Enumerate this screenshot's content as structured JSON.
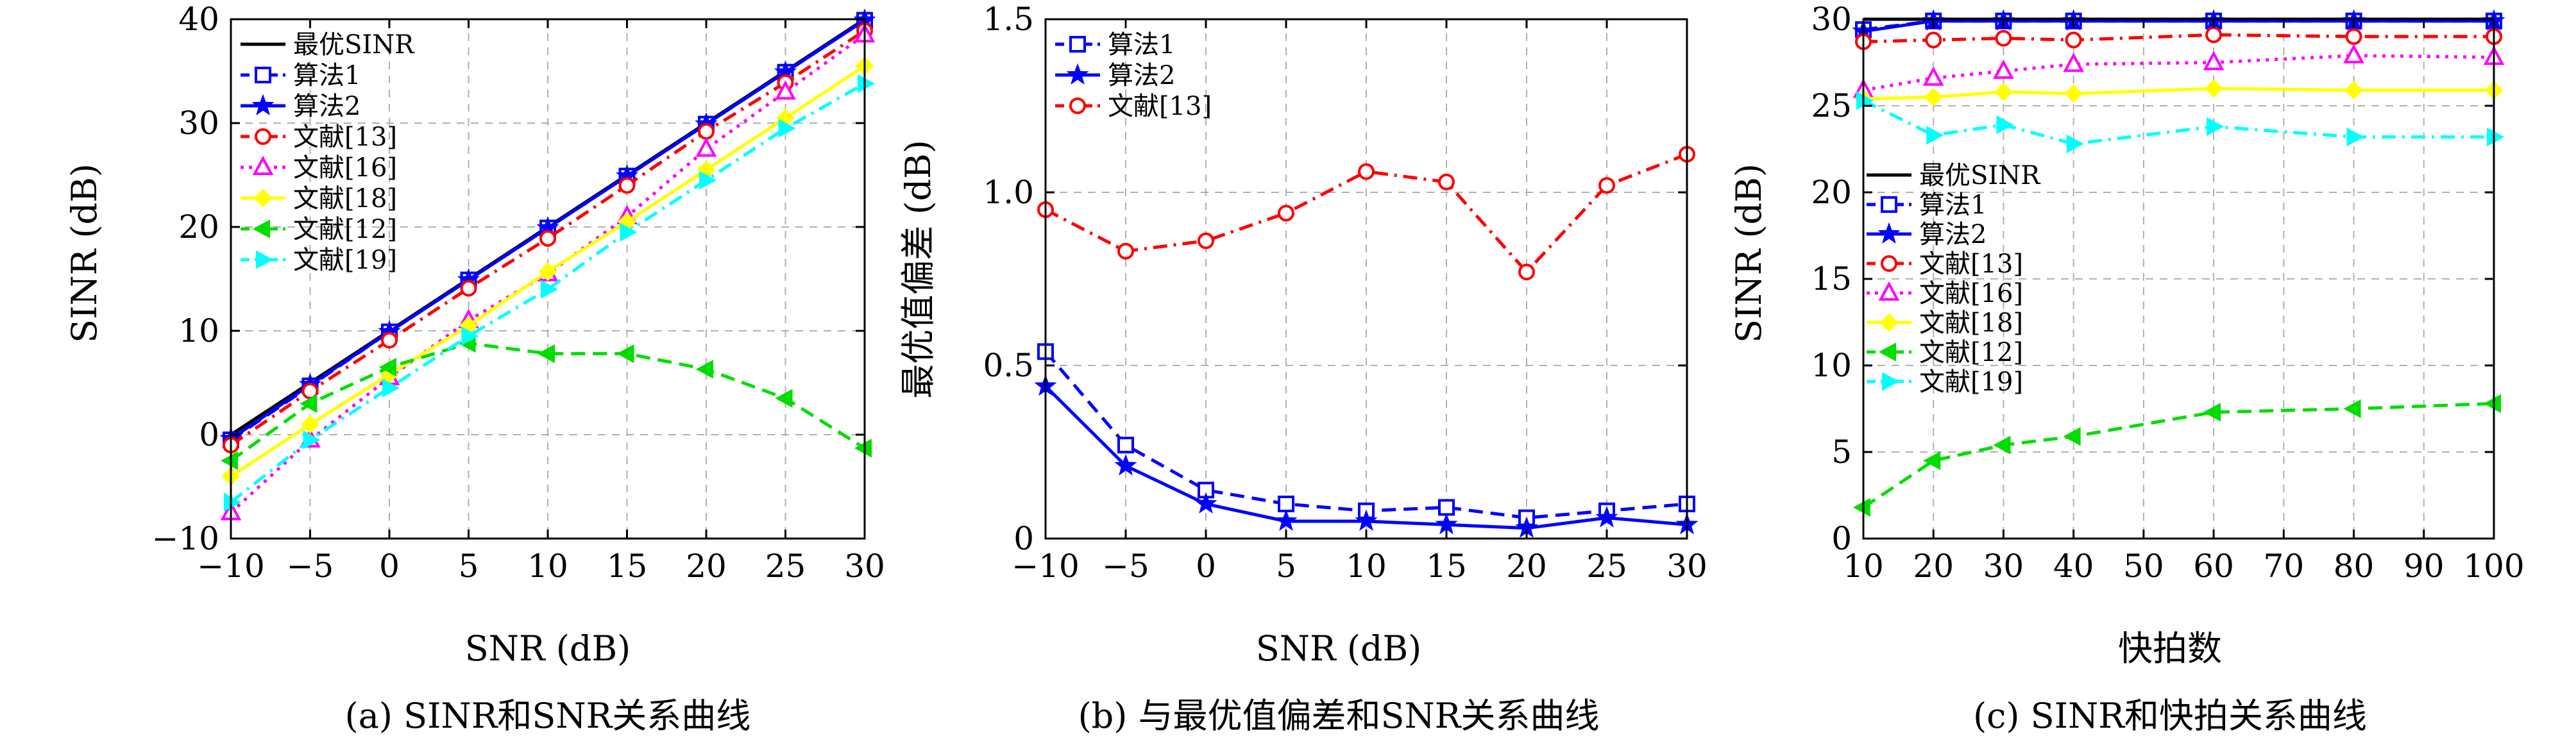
{
  "chart_data": [
    {
      "type": "line",
      "caption": "(a) SINR和SNR关系曲线",
      "xlabel": "SNR (dB)",
      "ylabel": "SINR (dB)",
      "xlim": [
        -10,
        30
      ],
      "ylim": [
        -10,
        40
      ],
      "xticks": [
        -10,
        -5,
        0,
        5,
        10,
        15,
        20,
        25,
        30
      ],
      "xtick_labels": [
        "−10",
        "−5",
        "0",
        "5",
        "10",
        "15",
        "20",
        "25",
        "30"
      ],
      "yticks": [
        -10,
        0,
        10,
        20,
        30,
        40
      ],
      "ytick_labels": [
        "−10",
        "0",
        "10",
        "20",
        "30",
        "40"
      ],
      "grid": true,
      "legend_position": "top-left",
      "x": [
        -10,
        -5,
        0,
        5,
        10,
        15,
        20,
        25,
        30
      ],
      "series": [
        {
          "name": "最优SINR",
          "color": "#000000",
          "dash": "solid",
          "marker": "none",
          "values": [
            0,
            5,
            10,
            15,
            20,
            25,
            30,
            35,
            40
          ]
        },
        {
          "name": "算法1",
          "color": "#0000ff",
          "dash": "dashed",
          "marker": "square",
          "values": [
            -0.5,
            4.7,
            9.9,
            14.9,
            19.9,
            24.9,
            29.9,
            34.9,
            39.9
          ]
        },
        {
          "name": "算法2",
          "color": "#0000ff",
          "dash": "solid",
          "marker": "star",
          "values": [
            -0.4,
            4.8,
            9.9,
            14.9,
            19.9,
            24.9,
            29.9,
            34.9,
            39.9
          ]
        },
        {
          "name": "文献[13]",
          "color": "#ff0000",
          "dash": "dashdot",
          "marker": "circle",
          "values": [
            -1.0,
            4.2,
            9.1,
            14.1,
            18.9,
            24.0,
            29.2,
            33.9,
            38.9
          ]
        },
        {
          "name": "文献[16]",
          "color": "#ff00ff",
          "dash": "dotted",
          "marker": "triangle",
          "values": [
            -7.5,
            -0.5,
            5.5,
            11.0,
            15.5,
            21.0,
            27.5,
            33.0,
            38.5
          ]
        },
        {
          "name": "文献[18]",
          "color": "#ffff00",
          "dash": "solid",
          "marker": "diamond",
          "values": [
            -4.0,
            1.0,
            5.8,
            10.5,
            15.7,
            20.5,
            25.5,
            30.5,
            35.5
          ]
        },
        {
          "name": "文献[12]",
          "color": "#00dd00",
          "dash": "dashed",
          "marker": "triangle-left",
          "values": [
            -2.5,
            3.0,
            6.5,
            8.8,
            7.8,
            7.8,
            6.3,
            3.5,
            -1.3
          ]
        },
        {
          "name": "文献[19]",
          "color": "#00ffff",
          "dash": "dashdot",
          "marker": "triangle-right",
          "values": [
            -6.5,
            -0.5,
            4.5,
            9.5,
            14.0,
            19.5,
            24.5,
            29.5,
            33.8
          ]
        }
      ]
    },
    {
      "type": "line",
      "caption": "(b) 与最优值偏差和SNR关系曲线",
      "xlabel": "SNR (dB)",
      "ylabel": "最优值偏差 (dB)",
      "xlim": [
        -10,
        30
      ],
      "ylim": [
        0,
        1.5
      ],
      "xticks": [
        -10,
        -5,
        0,
        5,
        10,
        15,
        20,
        25,
        30
      ],
      "xtick_labels": [
        "−10",
        "−5",
        "0",
        "5",
        "10",
        "15",
        "20",
        "25",
        "30"
      ],
      "yticks": [
        0,
        0.5,
        1.0,
        1.5
      ],
      "ytick_labels": [
        "0",
        "0.5",
        "1.0",
        "1.5"
      ],
      "grid": true,
      "legend_position": "top-left",
      "x": [
        -10,
        -5,
        0,
        5,
        10,
        15,
        20,
        25,
        30
      ],
      "series": [
        {
          "name": "算法1",
          "color": "#0000ff",
          "dash": "dashed",
          "marker": "square",
          "values": [
            0.54,
            0.27,
            0.14,
            0.1,
            0.08,
            0.09,
            0.06,
            0.08,
            0.1
          ]
        },
        {
          "name": "算法2",
          "color": "#0000ff",
          "dash": "solid",
          "marker": "star",
          "values": [
            0.44,
            0.21,
            0.1,
            0.05,
            0.05,
            0.04,
            0.03,
            0.06,
            0.04
          ]
        },
        {
          "name": "文献[13]",
          "color": "#ff0000",
          "dash": "dashdot",
          "marker": "circle",
          "values": [
            0.95,
            0.83,
            0.86,
            0.94,
            1.06,
            1.03,
            0.77,
            1.02,
            1.11
          ]
        }
      ]
    },
    {
      "type": "line",
      "caption": "(c) SINR和快拍关系曲线",
      "xlabel": "快拍数",
      "ylabel": "SINR (dB)",
      "xlim": [
        10,
        100
      ],
      "ylim": [
        0,
        30
      ],
      "xticks": [
        10,
        20,
        30,
        40,
        50,
        60,
        70,
        80,
        90,
        100
      ],
      "xtick_labels": [
        "10",
        "20",
        "30",
        "40",
        "50",
        "60",
        "70",
        "80",
        "90",
        "100"
      ],
      "yticks": [
        0,
        5,
        10,
        15,
        20,
        25,
        30
      ],
      "ytick_labels": [
        "0",
        "5",
        "10",
        "15",
        "20",
        "25",
        "30"
      ],
      "grid": true,
      "legend_position": "center-left",
      "x": [
        10,
        20,
        30,
        40,
        60,
        80,
        100
      ],
      "series": [
        {
          "name": "最优SINR",
          "color": "#000000",
          "dash": "solid",
          "marker": "none",
          "values": [
            30,
            30,
            30,
            30,
            30,
            30,
            30
          ]
        },
        {
          "name": "算法1",
          "color": "#0000ff",
          "dash": "dashed",
          "marker": "square",
          "values": [
            29.4,
            29.9,
            29.9,
            29.9,
            29.9,
            29.9,
            29.9
          ]
        },
        {
          "name": "算法2",
          "color": "#0000ff",
          "dash": "solid",
          "marker": "star",
          "values": [
            29.3,
            29.9,
            29.9,
            29.9,
            29.9,
            29.9,
            29.9
          ]
        },
        {
          "name": "文献[13]",
          "color": "#ff0000",
          "dash": "dashdot",
          "marker": "circle",
          "values": [
            28.7,
            28.8,
            28.9,
            28.8,
            29.1,
            29.0,
            29.0
          ]
        },
        {
          "name": "文献[16]",
          "color": "#ff00ff",
          "dash": "dotted",
          "marker": "triangle",
          "values": [
            25.9,
            26.6,
            27.0,
            27.4,
            27.5,
            27.9,
            27.8
          ]
        },
        {
          "name": "文献[18]",
          "color": "#ffff00",
          "dash": "solid",
          "marker": "diamond",
          "values": [
            25.4,
            25.5,
            25.8,
            25.7,
            26.0,
            25.9,
            25.9
          ]
        },
        {
          "name": "文献[12]",
          "color": "#00dd00",
          "dash": "dashed",
          "marker": "triangle-left",
          "values": [
            1.8,
            4.5,
            5.4,
            5.9,
            7.3,
            7.5,
            7.8
          ]
        },
        {
          "name": "文献[19]",
          "color": "#00ffff",
          "dash": "dashdot",
          "marker": "triangle-right",
          "values": [
            25.3,
            23.3,
            23.9,
            22.8,
            23.8,
            23.2,
            23.2
          ]
        }
      ]
    }
  ]
}
